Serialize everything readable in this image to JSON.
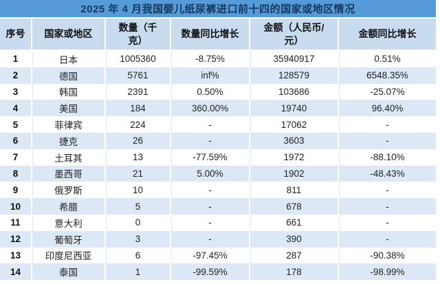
{
  "chart_data": {
    "type": "table",
    "title": "2025 年 4 月我国婴儿纸尿裤进口前十四的国家或地区情况",
    "columns": [
      "序号",
      "国家或地区",
      "数量（千克）",
      "数量同比增长",
      "金额（人民币/元）",
      "金额同比增长"
    ],
    "columns_display": [
      "序号",
      "国家或地区",
      "数量（千\n克）",
      "数量同比增长",
      "金额（人民币/\n元）",
      "金额同比增长"
    ],
    "rows": [
      [
        "1",
        "日本",
        "1005360",
        "-8.75%",
        "35940917",
        "0.51%"
      ],
      [
        "2",
        "德国",
        "5761",
        "inf%",
        "128579",
        "6548.35%"
      ],
      [
        "3",
        "韩国",
        "2391",
        "0.50%",
        "103686",
        "-25.07%"
      ],
      [
        "4",
        "美国",
        "184",
        "360.00%",
        "19740",
        "96.40%"
      ],
      [
        "5",
        "菲律宾",
        "224",
        "-",
        "17062",
        "-"
      ],
      [
        "6",
        "捷克",
        "26",
        "-",
        "3603",
        "-"
      ],
      [
        "7",
        "土耳其",
        "13",
        "-77.59%",
        "1972",
        "-88.10%"
      ],
      [
        "8",
        "墨西哥",
        "21",
        "5.00%",
        "1902",
        "-48.43%"
      ],
      [
        "9",
        "俄罗斯",
        "10",
        "-",
        "811",
        "-"
      ],
      [
        "10",
        "希腊",
        "5",
        "-",
        "678",
        "-"
      ],
      [
        "11",
        "意大利",
        "0",
        "-",
        "661",
        "-"
      ],
      [
        "12",
        "葡萄牙",
        "3",
        "-",
        "390",
        "-"
      ],
      [
        "13",
        "印度尼西亚",
        "6",
        "-97.45%",
        "287",
        "-90.38%"
      ],
      [
        "14",
        "泰国",
        "1",
        "-99.59%",
        "178",
        "-98.99%"
      ]
    ],
    "layout_hints": {
      "striped_rows": true,
      "stripe_applies_to": "even data rows",
      "header_rows": 1,
      "title_position": "top-banner"
    }
  },
  "colors": {
    "title_bg": "#549BD8",
    "title_text": "#17375D",
    "header_bg": "#C9DCEF",
    "stripe_bg": "#DCE8F6",
    "row_bg": "#FFFFFF",
    "grid": "#FFFFFF",
    "body_text": "#1F1F1F"
  }
}
